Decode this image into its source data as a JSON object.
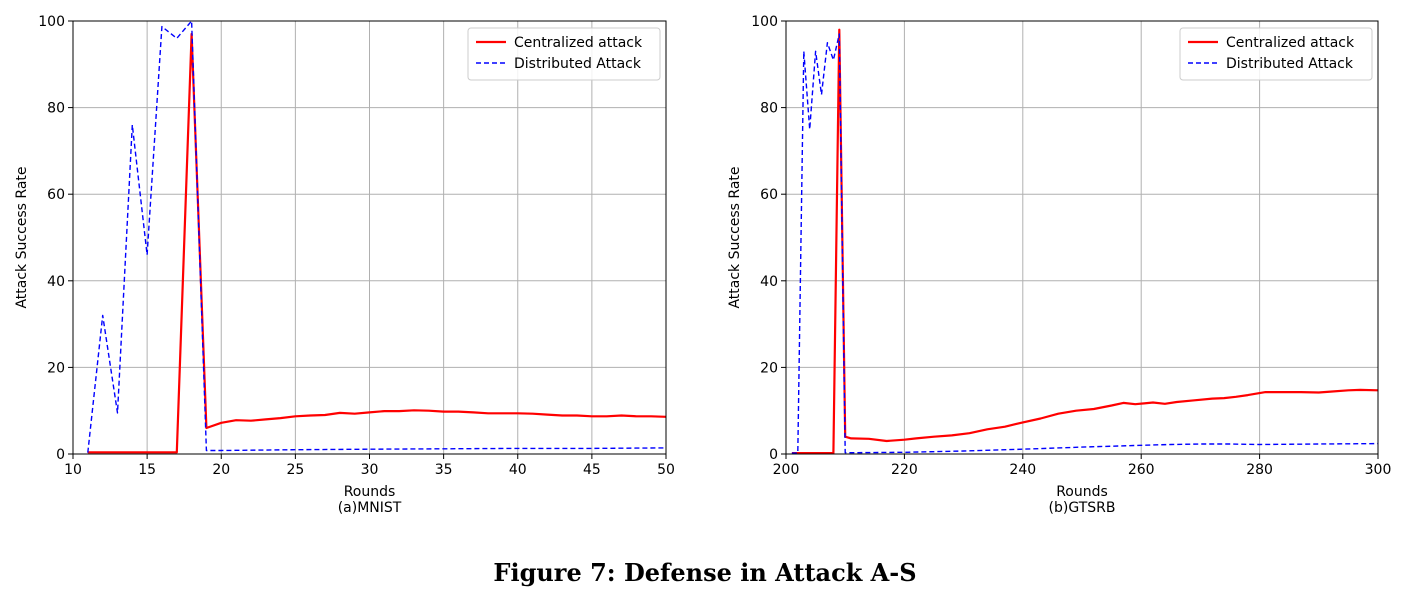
{
  "figure": {
    "caption": "Figure 7: Defense in Attack A-S"
  },
  "chart_data": [
    {
      "type": "line",
      "panel_label": "(a)MNIST",
      "xlabel": "Rounds",
      "ylabel": "Attack Success Rate",
      "xlim": [
        10,
        50
      ],
      "ylim": [
        0,
        100
      ],
      "xticks": [
        10,
        15,
        20,
        25,
        30,
        35,
        40,
        45,
        50
      ],
      "yticks": [
        0,
        20,
        40,
        60,
        80,
        100
      ],
      "grid": true,
      "legend_position": "top-right",
      "series": [
        {
          "name": "Centralized attack",
          "color": "#ff0000",
          "style": "solid",
          "x": [
            11,
            12,
            13,
            14,
            15,
            16,
            17,
            18,
            19,
            20,
            21,
            22,
            23,
            24,
            25,
            26,
            27,
            28,
            29,
            30,
            31,
            32,
            33,
            34,
            35,
            36,
            37,
            38,
            39,
            40,
            41,
            42,
            43,
            44,
            45,
            46,
            47,
            48,
            49,
            50
          ],
          "y": [
            0.4,
            0.4,
            0.4,
            0.4,
            0.4,
            0.4,
            0.4,
            97,
            6,
            7.2,
            7.8,
            7.7,
            8.0,
            8.3,
            8.7,
            8.9,
            9.0,
            9.5,
            9.3,
            9.6,
            9.9,
            9.9,
            10.1,
            10.0,
            9.8,
            9.8,
            9.6,
            9.4,
            9.4,
            9.4,
            9.3,
            9.1,
            8.9,
            8.9,
            8.7,
            8.7,
            8.9,
            8.7,
            8.7,
            8.6
          ]
        },
        {
          "name": "Distributed Attack",
          "color": "#0000ff",
          "style": "dashed",
          "x": [
            11,
            12,
            13,
            14,
            15,
            16,
            17,
            18,
            19,
            20,
            25,
            30,
            35,
            40,
            45,
            50
          ],
          "y": [
            0.3,
            32,
            9.5,
            76,
            46,
            98.7,
            96,
            100,
            0.8,
            0.8,
            1.0,
            1.1,
            1.2,
            1.3,
            1.3,
            1.4
          ]
        }
      ]
    },
    {
      "type": "line",
      "panel_label": "(b)GTSRB",
      "xlabel": "Rounds",
      "ylabel": "Attack Success Rate",
      "xlim": [
        200,
        300
      ],
      "ylim": [
        0,
        100
      ],
      "xticks": [
        200,
        220,
        240,
        260,
        280,
        300
      ],
      "yticks": [
        0,
        20,
        40,
        60,
        80,
        100
      ],
      "grid": true,
      "legend_position": "top-right",
      "series": [
        {
          "name": "Centralized attack",
          "color": "#ff0000",
          "style": "solid",
          "x": [
            201,
            208,
            209,
            210,
            211,
            214,
            217,
            220,
            222,
            225,
            228,
            231,
            234,
            237,
            240,
            243,
            246,
            249,
            252,
            255,
            257,
            259,
            262,
            264,
            266,
            269,
            272,
            274,
            276,
            278,
            281,
            284,
            287,
            290,
            292,
            295,
            297,
            300
          ],
          "y": [
            0.2,
            0.2,
            98,
            4,
            3.6,
            3.5,
            3.0,
            3.3,
            3.6,
            4.0,
            4.3,
            4.8,
            5.7,
            6.3,
            7.3,
            8.2,
            9.3,
            10.0,
            10.4,
            11.2,
            11.8,
            11.5,
            11.9,
            11.6,
            12.0,
            12.4,
            12.8,
            12.9,
            13.2,
            13.6,
            14.3,
            14.3,
            14.3,
            14.2,
            14.4,
            14.7,
            14.8,
            14.7
          ]
        },
        {
          "name": "Distributed Attack",
          "color": "#0000ff",
          "style": "dashed",
          "x": [
            201,
            202,
            203,
            204,
            205,
            206,
            207,
            208,
            209,
            210,
            211,
            220,
            230,
            240,
            250,
            260,
            265,
            270,
            275,
            280,
            290,
            300
          ],
          "y": [
            0.2,
            0.2,
            93,
            75,
            93,
            83,
            95,
            91,
            97,
            0.3,
            0.3,
            0.4,
            0.7,
            1.1,
            1.6,
            2.0,
            2.2,
            2.3,
            2.3,
            2.2,
            2.3,
            2.4
          ]
        }
      ]
    }
  ]
}
